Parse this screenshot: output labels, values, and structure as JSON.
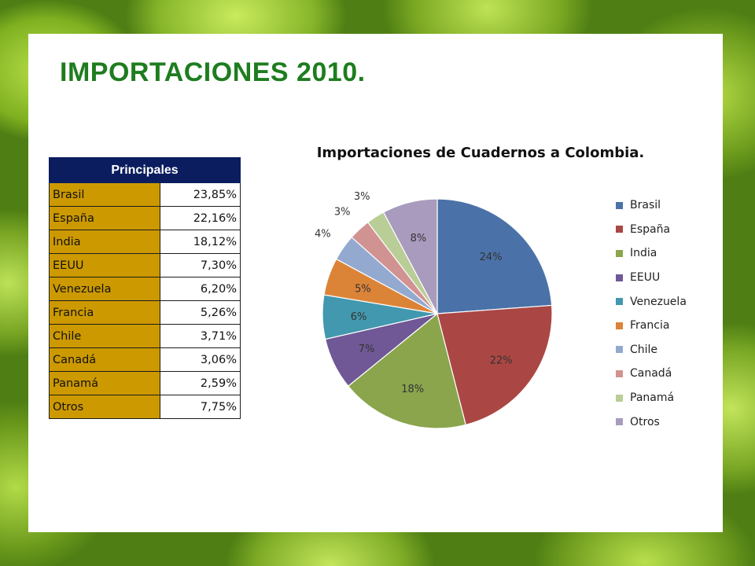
{
  "slide": {
    "title": "IMPORTACIONES 2010."
  },
  "table": {
    "header": "Principales",
    "rows": [
      {
        "country": "Brasil",
        "value": "23,85%"
      },
      {
        "country": "España",
        "value": "22,16%"
      },
      {
        "country": "India",
        "value": "18,12%"
      },
      {
        "country": "EEUU",
        "value": "7,30%"
      },
      {
        "country": "Venezuela",
        "value": "6,20%"
      },
      {
        "country": "Francia",
        "value": "5,26%"
      },
      {
        "country": "Chile",
        "value": "3,71%"
      },
      {
        "country": "Canadá",
        "value": "3,06%"
      },
      {
        "country": "Panamá",
        "value": "2,59%"
      },
      {
        "country": "Otros",
        "value": "7,75%"
      }
    ]
  },
  "chart_data": {
    "type": "pie",
    "title": "Importaciones de Cuadernos a Colombia.",
    "categories": [
      "Brasil",
      "España",
      "India",
      "EEUU",
      "Venezuela",
      "Francia",
      "Chile",
      "Canadá",
      "Panamá",
      "Otros"
    ],
    "values": [
      23.85,
      22.16,
      18.12,
      7.3,
      6.2,
      5.26,
      3.71,
      3.06,
      2.59,
      7.75
    ],
    "data_labels": [
      "24%",
      "22%",
      "18%",
      "7%",
      "6%",
      "5%",
      "4%",
      "3%",
      "3%",
      "8%"
    ],
    "colors": [
      "#4a72a8",
      "#aa4744",
      "#8aa54c",
      "#6f5895",
      "#4298ae",
      "#db8438",
      "#93a9cf",
      "#d19392",
      "#b9cd96",
      "#a99bbd"
    ],
    "legend_position": "right"
  }
}
